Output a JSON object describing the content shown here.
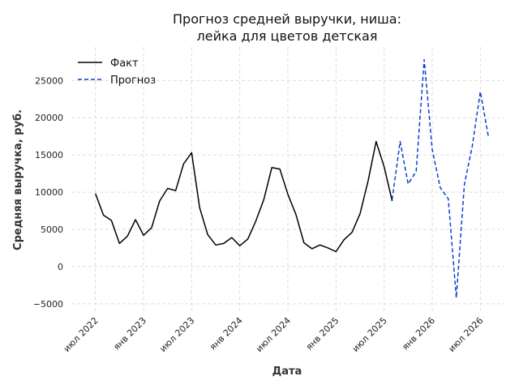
{
  "chart_data": {
    "type": "line",
    "title": [
      "Прогноз средней выручки, ниша:",
      "лейка для цветов детская"
    ],
    "xlabel": "Дата",
    "ylabel": "Средняя выручка, руб.",
    "ylim": [
      -6000,
      29500
    ],
    "yticks": [
      -5000,
      0,
      5000,
      10000,
      15000,
      20000,
      25000
    ],
    "ytick_labels": [
      "−5000",
      "0",
      "5000",
      "10000",
      "15000",
      "20000",
      "25000"
    ],
    "xticks": [
      "2022-07",
      "2023-01",
      "2023-07",
      "2024-01",
      "2024-07",
      "2025-01",
      "2025-07",
      "2026-01",
      "2026-07"
    ],
    "xtick_labels": [
      "июл 2022",
      "янв 2023",
      "июл 2023",
      "янв 2024",
      "июл 2024",
      "янв 2025",
      "июл 2025",
      "янв 2026",
      "июл 2026"
    ],
    "x_range": [
      "2022-04",
      "2026-10"
    ],
    "grid": true,
    "legend_position": "top-left",
    "series": [
      {
        "name": "Факт",
        "color": "#000000",
        "style": "solid",
        "x": [
          "2022-07",
          "2022-08",
          "2022-09",
          "2022-10",
          "2022-11",
          "2022-12",
          "2023-01",
          "2023-02",
          "2023-03",
          "2023-04",
          "2023-05",
          "2023-06",
          "2023-07",
          "2023-08",
          "2023-09",
          "2023-10",
          "2023-11",
          "2023-12",
          "2024-01",
          "2024-02",
          "2024-03",
          "2024-04",
          "2024-05",
          "2024-06",
          "2024-07",
          "2024-08",
          "2024-09",
          "2024-10",
          "2024-11",
          "2024-12",
          "2025-01",
          "2025-02",
          "2025-03",
          "2025-04",
          "2025-05",
          "2025-06",
          "2025-07",
          "2025-08"
        ],
        "values": [
          9800,
          6900,
          6200,
          3100,
          4100,
          6300,
          4200,
          5200,
          8800,
          10500,
          10200,
          13800,
          15300,
          7900,
          4300,
          2900,
          3100,
          3900,
          2800,
          3700,
          6100,
          9000,
          13300,
          13100,
          9700,
          7000,
          3200,
          2400,
          2900,
          2500,
          2000,
          3600,
          4600,
          7100,
          11500,
          16800,
          13400,
          8800
        ]
      },
      {
        "name": "Прогноз",
        "color": "#0b3fd0",
        "style": "dashed",
        "x": [
          "2025-08",
          "2025-09",
          "2025-10",
          "2025-11",
          "2025-12",
          "2026-01",
          "2026-02",
          "2026-03",
          "2026-04",
          "2026-05",
          "2026-06",
          "2026-07",
          "2026-08"
        ],
        "values": [
          9000,
          16800,
          11100,
          12800,
          27800,
          15700,
          10600,
          9100,
          -4200,
          11000,
          16200,
          23500,
          17500
        ]
      }
    ]
  }
}
